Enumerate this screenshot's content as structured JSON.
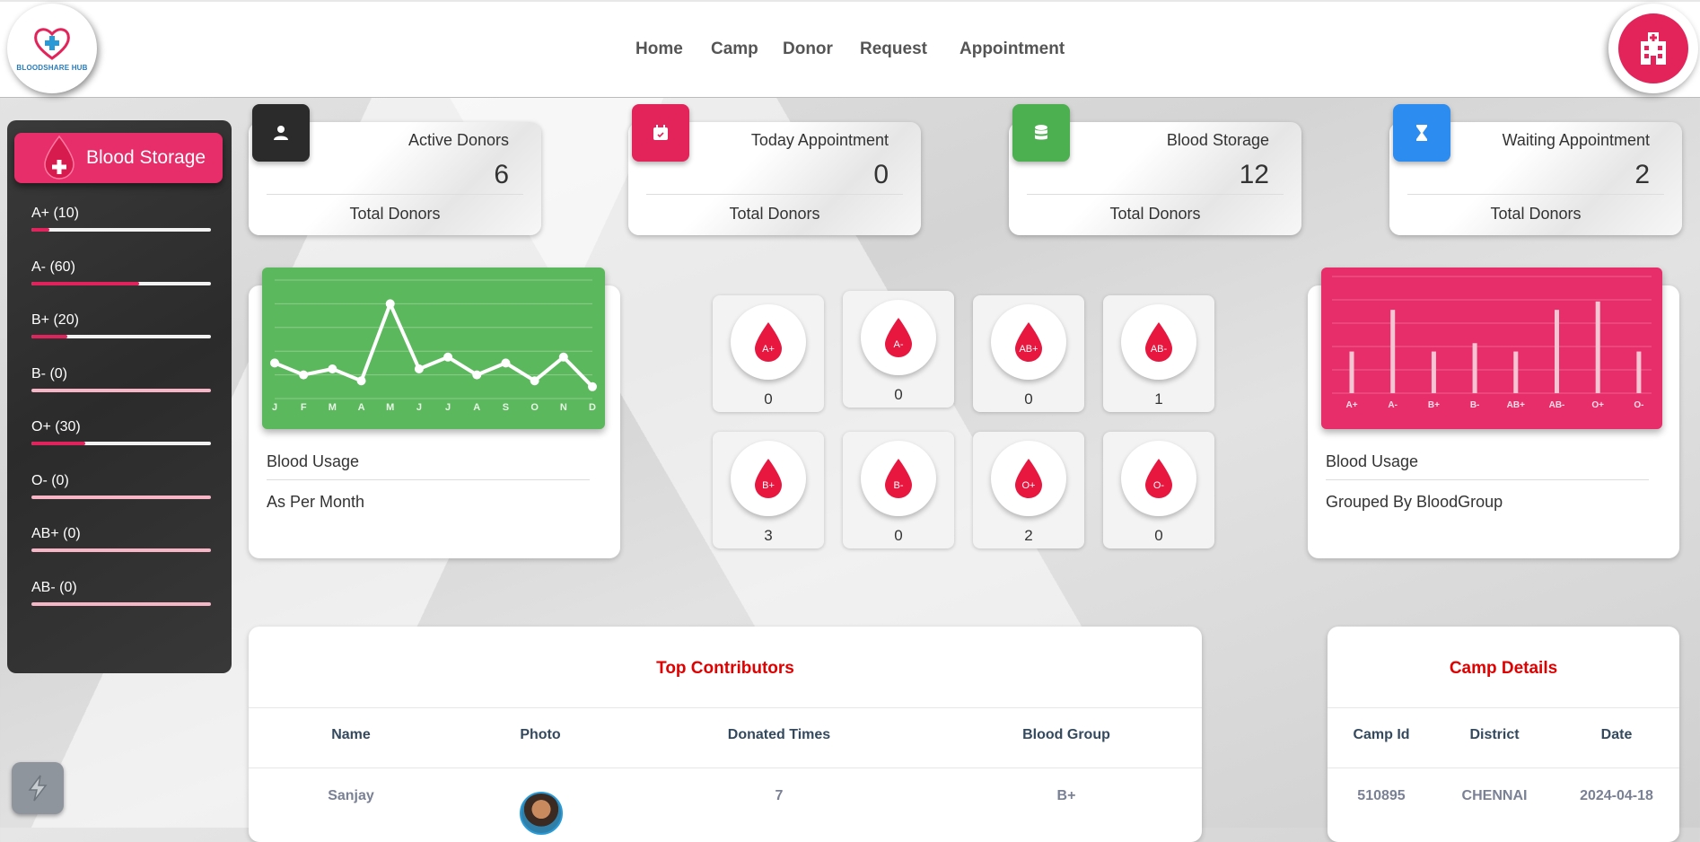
{
  "brand": {
    "logo_text": "BLOODSHARE HUB"
  },
  "nav": {
    "items": [
      "Home",
      "Camp",
      "Donor",
      "Request",
      "Appointment"
    ]
  },
  "sidebar": {
    "title": "Blood Storage",
    "items": [
      {
        "label": "A+ (10)",
        "level": 0.1
      },
      {
        "label": "A- (60)",
        "level": 0.6
      },
      {
        "label": "B+ (20)",
        "level": 0.2
      },
      {
        "label": "B- (0)",
        "level": 0
      },
      {
        "label": "O+ (30)",
        "level": 0.3
      },
      {
        "label": "O- (0)",
        "level": 0
      },
      {
        "label": "AB+ (0)",
        "level": 0
      },
      {
        "label": "AB- (0)",
        "level": 0
      }
    ]
  },
  "stats": [
    {
      "title": "Active Donors",
      "value": "6",
      "footer": "Total Donors",
      "color": "#2b2b2b",
      "icon": "user-icon"
    },
    {
      "title": "Today Appointment",
      "value": "0",
      "footer": "Total Donors",
      "color": "#e3245b",
      "icon": "calendar-icon"
    },
    {
      "title": "Blood Storage",
      "value": "12",
      "footer": "Total Donors",
      "color": "#4caf50",
      "icon": "database-icon"
    },
    {
      "title": "Waiting Appointment",
      "value": "2",
      "footer": "Total Donors",
      "color": "#2d8cf0",
      "icon": "hourglass-icon"
    }
  ],
  "usage_month": {
    "line1": "Blood Usage",
    "line2": "As Per Month"
  },
  "usage_group": {
    "line1": "Blood Usage",
    "line2": "Grouped By BloodGroup"
  },
  "blood_groups": [
    {
      "label": "A+",
      "count": "0"
    },
    {
      "label": "A-",
      "count": "0"
    },
    {
      "label": "AB+",
      "count": "0"
    },
    {
      "label": "AB-",
      "count": "1"
    },
    {
      "label": "B+",
      "count": "3"
    },
    {
      "label": "B-",
      "count": "0"
    },
    {
      "label": "O+",
      "count": "2"
    },
    {
      "label": "O-",
      "count": "0"
    }
  ],
  "chart_data": [
    {
      "type": "line",
      "categories": [
        "J",
        "F",
        "M",
        "A",
        "M",
        "J",
        "J",
        "A",
        "S",
        "O",
        "N",
        "D"
      ],
      "values": [
        6,
        4,
        5,
        3,
        16,
        5,
        7,
        4,
        6,
        3,
        7,
        2
      ],
      "ylim": [
        0,
        20
      ],
      "grid": true,
      "color": "#ffffff",
      "background": "#5cb85c"
    },
    {
      "type": "bar",
      "categories": [
        "A+",
        "A-",
        "B+",
        "B-",
        "AB+",
        "AB-",
        "O+",
        "O-"
      ],
      "values": [
        5,
        10,
        5,
        6,
        5,
        10,
        11,
        5
      ],
      "ylim": [
        0,
        14
      ],
      "grid": true,
      "color": "#f4c6d4",
      "background": "#e72d6a"
    }
  ],
  "contributors": {
    "title": "Top Contributors",
    "columns": [
      "Name",
      "Photo",
      "Donated Times",
      "Blood Group"
    ],
    "rows": [
      {
        "name": "Sanjay",
        "donated": "7",
        "group": "B+"
      }
    ]
  },
  "camps": {
    "title": "Camp Details",
    "columns": [
      "Camp Id",
      "District",
      "Date"
    ],
    "rows": [
      {
        "id": "510895",
        "district": "CHENNAI",
        "date": "2024-04-18"
      }
    ]
  }
}
